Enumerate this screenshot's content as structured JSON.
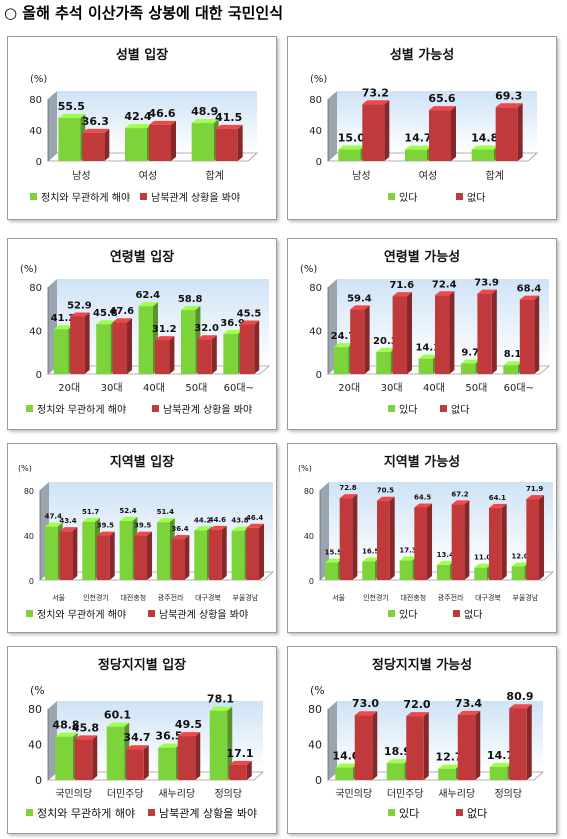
{
  "page_title": "○ 올해 추석 이산가족 상봉에 대한 국민인식",
  "colors": {
    "green": "#7dd33a",
    "red": "#c0393b",
    "wall": "#9aa4ae",
    "sky": "#cfe3f6"
  },
  "chart_data": [
    {
      "type": "bar",
      "title": "성별 입장",
      "unit_label": "(%)",
      "categories": [
        "남성",
        "여성",
        "합계"
      ],
      "ylim": [
        0,
        80
      ],
      "yticks": [
        0,
        40,
        80
      ],
      "series": [
        {
          "name": "정치와 무관하게 해야",
          "values": [
            55.5,
            42.4,
            48.9
          ]
        },
        {
          "name": "남북관계 상황을 봐야",
          "values": [
            36.3,
            46.6,
            41.5
          ]
        }
      ],
      "legend": "bottom"
    },
    {
      "type": "bar",
      "title": "성별 가능성",
      "unit_label": "(%)",
      "categories": [
        "남성",
        "여성",
        "합계"
      ],
      "ylim": [
        0,
        80
      ],
      "yticks": [
        0,
        40,
        80
      ],
      "series": [
        {
          "name": "있다",
          "values": [
            15.0,
            14.7,
            14.8
          ]
        },
        {
          "name": "없다",
          "values": [
            73.2,
            65.6,
            69.3
          ]
        }
      ],
      "legend": "bottom"
    },
    {
      "type": "bar",
      "title": "연령별 입장",
      "unit_label": "(%)",
      "categories": [
        "20대",
        "30대",
        "40대",
        "50대",
        "60대~"
      ],
      "ylim": [
        0,
        80
      ],
      "yticks": [
        0,
        40,
        80
      ],
      "series": [
        {
          "name": "정치와 무관하게 해야",
          "values": [
            41.2,
            45.8,
            62.4,
            58.8,
            36.9
          ]
        },
        {
          "name": "남북관계 상황을 봐야",
          "values": [
            52.9,
            47.6,
            31.2,
            32.0,
            45.5
          ]
        }
      ],
      "legend": "bottom"
    },
    {
      "type": "bar",
      "title": "연령별 가능성",
      "unit_label": "(%)",
      "categories": [
        "20대",
        "30대",
        "40대",
        "50대",
        "60대~"
      ],
      "ylim": [
        0,
        80
      ],
      "yticks": [
        0,
        40,
        80
      ],
      "series": [
        {
          "name": "있다",
          "values": [
            24.7,
            20.3,
            14.1,
            9.7,
            8.1
          ]
        },
        {
          "name": "없다",
          "values": [
            59.4,
            71.6,
            72.4,
            73.9,
            68.4
          ]
        }
      ],
      "legend": "bottom"
    },
    {
      "type": "bar",
      "title": "지역별 입장",
      "unit_label": "(%)",
      "categories": [
        "서울",
        "인천경기",
        "대전충청",
        "광주전라",
        "대구경북",
        "부울경남"
      ],
      "ylim": [
        0,
        80
      ],
      "yticks": [
        0,
        40,
        80
      ],
      "series": [
        {
          "name": "정치와 무관하게 해야",
          "values": [
            47.4,
            51.7,
            52.4,
            51.4,
            44.2,
            43.8
          ]
        },
        {
          "name": "남북관계 상황을 봐야",
          "values": [
            43.4,
            39.5,
            39.5,
            36.4,
            44.6,
            46.4
          ]
        }
      ],
      "legend": "bottom"
    },
    {
      "type": "bar",
      "title": "지역별 가능성",
      "unit_label": "(%)",
      "categories": [
        "서울",
        "인천경기",
        "대전충청",
        "광주전라",
        "대구경북",
        "부울경남"
      ],
      "ylim": [
        0,
        80
      ],
      "yticks": [
        0,
        40,
        80
      ],
      "series": [
        {
          "name": "있다",
          "values": [
            15.5,
            16.5,
            17.3,
            13.4,
            11.0,
            12.0
          ]
        },
        {
          "name": "없다",
          "values": [
            72.8,
            70.5,
            64.5,
            67.2,
            64.1,
            71.9
          ]
        }
      ],
      "legend": "bottom"
    },
    {
      "type": "bar",
      "title": "정당지지별 입장",
      "unit_label": "(%",
      "categories": [
        "국민의당",
        "더민주당",
        "새누리당",
        "정의당"
      ],
      "ylim": [
        0,
        80
      ],
      "yticks": [
        0,
        40,
        80
      ],
      "series": [
        {
          "name": "정치와 무관하게 해야",
          "values": [
            48.8,
            60.1,
            36.5,
            78.1
          ]
        },
        {
          "name": "남북관계 상황을 봐야",
          "values": [
            45.8,
            34.7,
            49.5,
            17.1
          ]
        }
      ],
      "legend": "bottom"
    },
    {
      "type": "bar",
      "title": "정당지지별 가능성",
      "unit_label": "(%",
      "categories": [
        "국민의당",
        "더민주당",
        "새누리당",
        "정의당"
      ],
      "ylim": [
        0,
        80
      ],
      "yticks": [
        0,
        40,
        80
      ],
      "series": [
        {
          "name": "있다",
          "values": [
            14.0,
            18.9,
            12.7,
            14.7
          ]
        },
        {
          "name": "없다",
          "values": [
            73.0,
            72.0,
            73.4,
            80.9
          ]
        }
      ],
      "legend": "bottom"
    }
  ]
}
